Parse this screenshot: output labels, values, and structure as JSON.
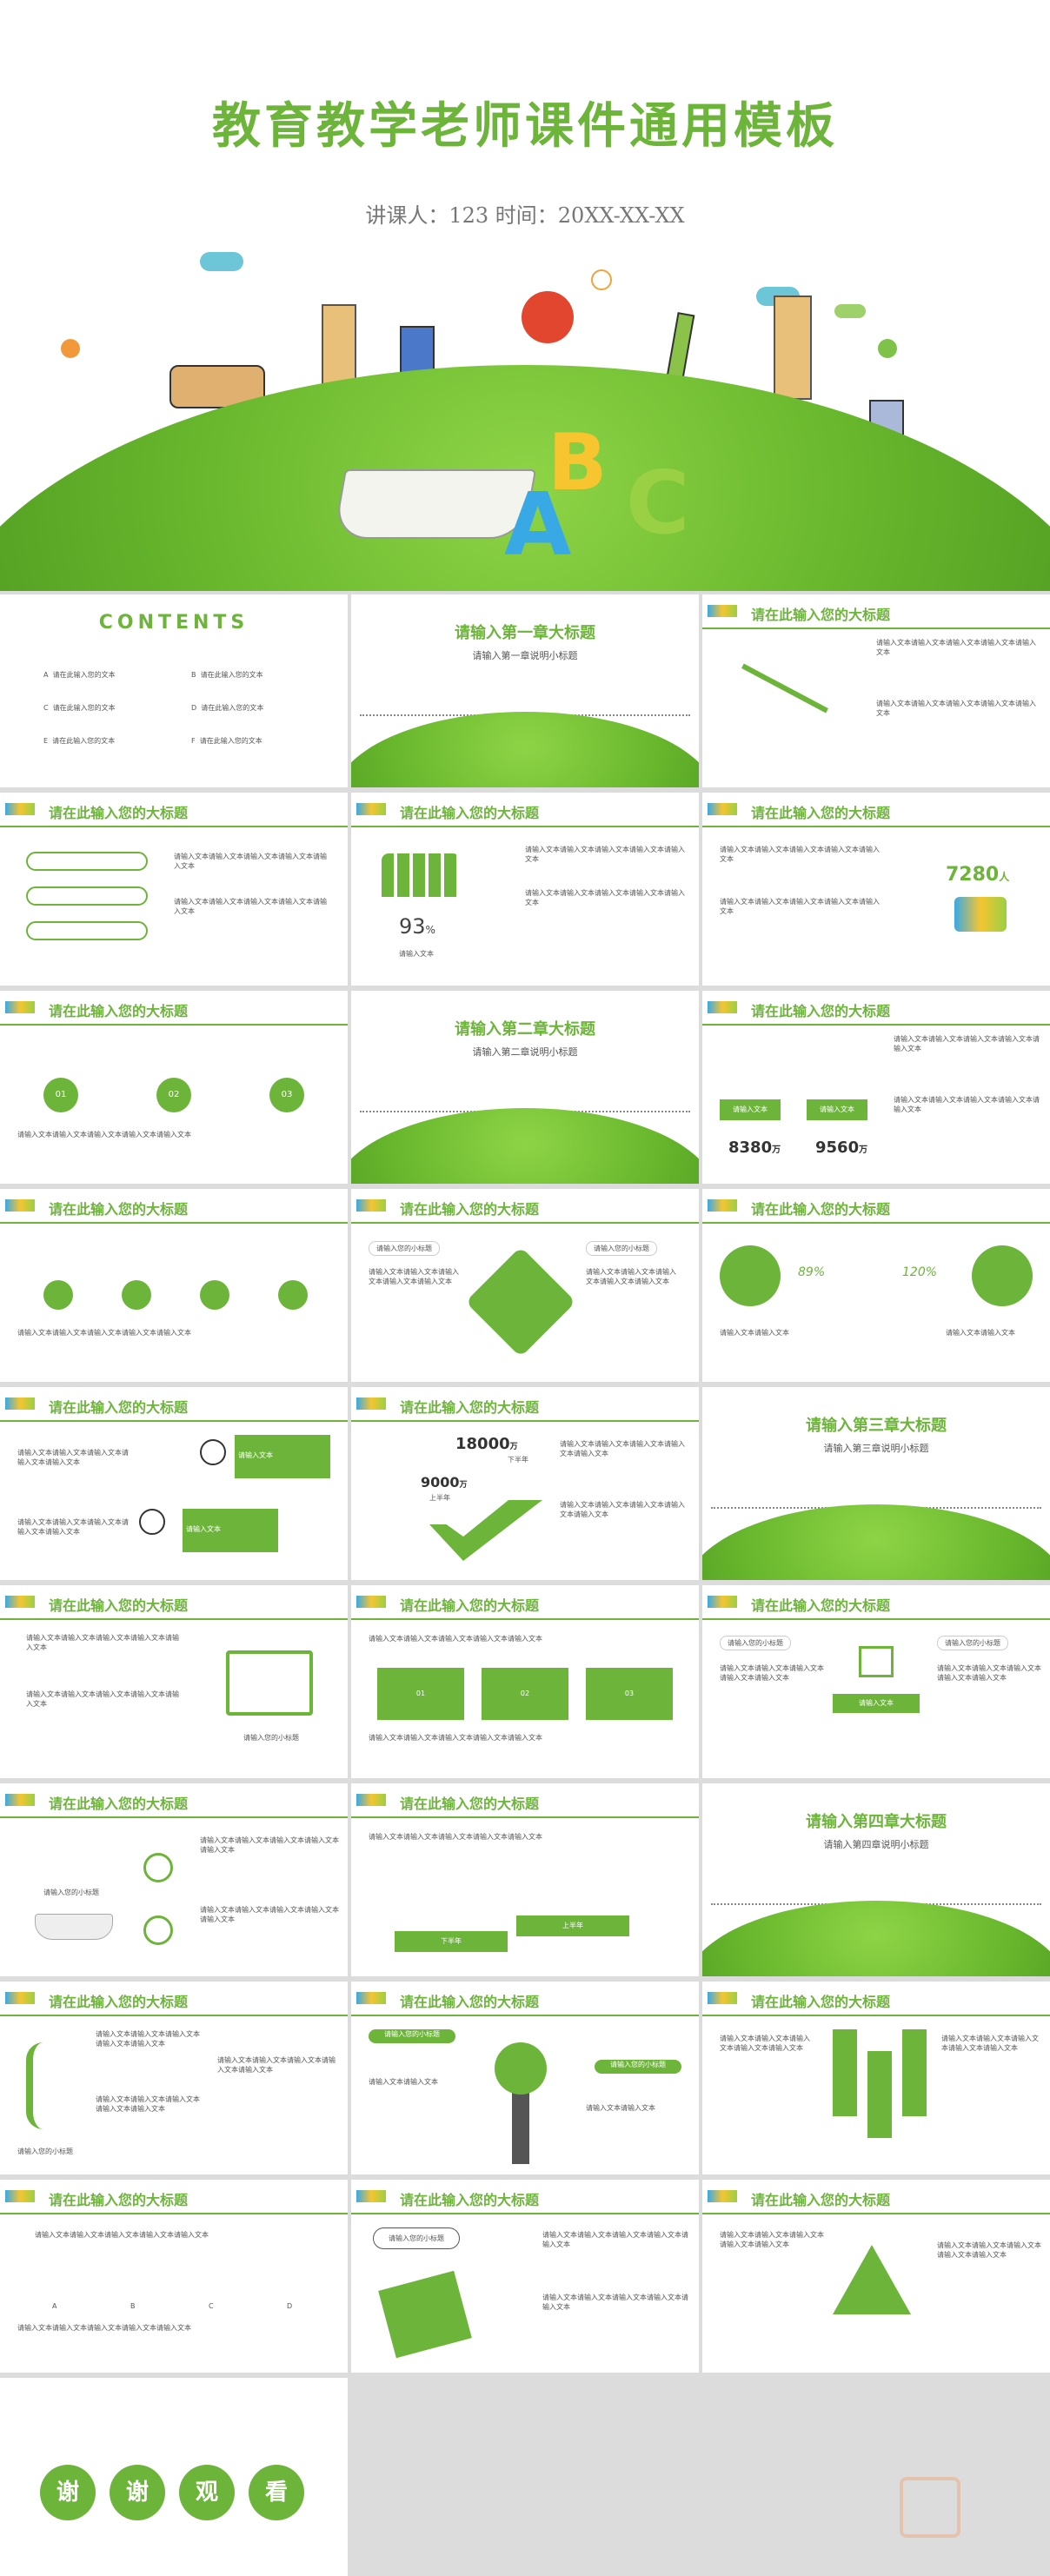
{
  "cover": {
    "title": "教育教学老师课件通用模板",
    "subtitle": "讲课人：123    时间：20XX-XX-XX",
    "abc": [
      "A",
      "B",
      "C"
    ]
  },
  "contents": {
    "title": "CONTENTS",
    "items": [
      {
        "letter": "A",
        "text": "请在此输入您的文本"
      },
      {
        "letter": "B",
        "text": "请在此输入您的文本"
      },
      {
        "letter": "C",
        "text": "请在此输入您的文本"
      },
      {
        "letter": "D",
        "text": "请在此输入您的文本"
      },
      {
        "letter": "E",
        "text": "请在此输入您的文本"
      },
      {
        "letter": "F",
        "text": "请在此输入您的文本"
      }
    ]
  },
  "header": "请在此输入您的大标题",
  "chapters": [
    {
      "title": "请输入第一章大标题",
      "sub": "请输入第一章说明小标题"
    },
    {
      "title": "请输入第二章大标题",
      "sub": "请输入第二章说明小标题"
    },
    {
      "title": "请输入第三章大标题",
      "sub": "请输入第三章说明小标题"
    },
    {
      "title": "请输入第四章大标题",
      "sub": "请输入第四章说明小标题"
    }
  ],
  "filler": "请输入文本请输入文本请输入文本请输入文本请输入文本",
  "filler_short": "请输入文本请输入文本",
  "stats": {
    "pct93": "93",
    "pct_unit": "%",
    "pct_label": "请输入文本",
    "people": "7280",
    "people_unit": "人",
    "v1": "8380",
    "v2": "9560",
    "unit": "万",
    "tag1": "请输入文本",
    "tag2": "请输入文本",
    "p89": "89%",
    "p120": "120%",
    "n18000": "18000",
    "n9000": "9000",
    "lbl_down": "下半年",
    "lbl_up": "上半年"
  },
  "labels": {
    "subtitle": "请输入您的小标题",
    "input_text": "请输入文本",
    "sub_btn": "请输入您的小标题",
    "speech": "请输入您的小标题",
    "nums": [
      "01",
      "02",
      "03"
    ],
    "down": "下半年",
    "up": "上半年",
    "letters": [
      "A",
      "B",
      "C",
      "D"
    ],
    "steps": [
      "01",
      "02",
      "03"
    ]
  },
  "thanks": [
    "谢",
    "谢",
    "观",
    "看"
  ]
}
